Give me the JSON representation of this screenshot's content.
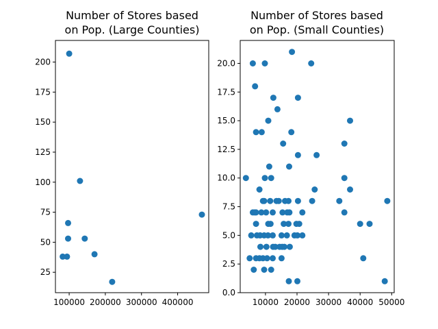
{
  "chart_data": [
    {
      "type": "scatter",
      "title": [
        "Number of Stores based",
        "on Pop. (Large Counties)"
      ],
      "xlabel": "",
      "ylabel": "",
      "xlim": [
        62000,
        486000
      ],
      "ylim": [
        8,
        218
      ],
      "x_ticks": [
        100000,
        200000,
        300000,
        400000
      ],
      "x_tick_labels": [
        "100000",
        "200000",
        "300000",
        "400000"
      ],
      "y_ticks": [
        25,
        50,
        75,
        100,
        125,
        150,
        175,
        200
      ],
      "y_tick_labels": [
        "25",
        "50",
        "75",
        "100",
        "125",
        "150",
        "175",
        "200"
      ],
      "marker_color": "#1f77b4",
      "grid": false,
      "points": [
        {
          "x": 100000,
          "y": 207
        },
        {
          "x": 130000,
          "y": 101
        },
        {
          "x": 97000,
          "y": 66
        },
        {
          "x": 97000,
          "y": 53
        },
        {
          "x": 143000,
          "y": 53
        },
        {
          "x": 82000,
          "y": 38
        },
        {
          "x": 94000,
          "y": 38
        },
        {
          "x": 170000,
          "y": 40
        },
        {
          "x": 219000,
          "y": 17
        },
        {
          "x": 467000,
          "y": 73
        }
      ]
    },
    {
      "type": "scatter",
      "title": [
        "Number of Stores based",
        "on Pop. (Small Counties)"
      ],
      "xlabel": "",
      "ylabel": "",
      "xlim": [
        2000,
        50800
      ],
      "ylim": [
        0,
        22
      ],
      "x_ticks": [
        10000,
        20000,
        30000,
        40000,
        50000
      ],
      "x_tick_labels": [
        "10000",
        "20000",
        "30000",
        "40000",
        "50000"
      ],
      "y_ticks": [
        0,
        2.5,
        5,
        7.5,
        10,
        12.5,
        15,
        17.5,
        20
      ],
      "y_tick_labels": [
        "0.0",
        "2.5",
        "5.0",
        "7.5",
        "10.0",
        "12.5",
        "15.0",
        "17.5",
        "20.0"
      ],
      "marker_color": "#1f77b4",
      "grid": false,
      "points": [
        {
          "x": 6000,
          "y": 20
        },
        {
          "x": 9800,
          "y": 20
        },
        {
          "x": 18400,
          "y": 21
        },
        {
          "x": 24500,
          "y": 20
        },
        {
          "x": 6700,
          "y": 18
        },
        {
          "x": 12500,
          "y": 17
        },
        {
          "x": 20300,
          "y": 17
        },
        {
          "x": 13800,
          "y": 16
        },
        {
          "x": 10900,
          "y": 15
        },
        {
          "x": 36800,
          "y": 15
        },
        {
          "x": 7000,
          "y": 14
        },
        {
          "x": 8800,
          "y": 14
        },
        {
          "x": 18200,
          "y": 14
        },
        {
          "x": 15600,
          "y": 13
        },
        {
          "x": 35000,
          "y": 13
        },
        {
          "x": 20300,
          "y": 12
        },
        {
          "x": 26200,
          "y": 12
        },
        {
          "x": 11200,
          "y": 11
        },
        {
          "x": 17500,
          "y": 11
        },
        {
          "x": 3800,
          "y": 10
        },
        {
          "x": 9800,
          "y": 10
        },
        {
          "x": 11800,
          "y": 10
        },
        {
          "x": 35000,
          "y": 10
        },
        {
          "x": 8100,
          "y": 9
        },
        {
          "x": 25600,
          "y": 9
        },
        {
          "x": 36800,
          "y": 9
        },
        {
          "x": 9200,
          "y": 8
        },
        {
          "x": 9600,
          "y": 8
        },
        {
          "x": 11500,
          "y": 8
        },
        {
          "x": 13500,
          "y": 8
        },
        {
          "x": 14200,
          "y": 8
        },
        {
          "x": 16200,
          "y": 8
        },
        {
          "x": 17300,
          "y": 8
        },
        {
          "x": 20300,
          "y": 8
        },
        {
          "x": 24800,
          "y": 8
        },
        {
          "x": 33400,
          "y": 8
        },
        {
          "x": 48600,
          "y": 8
        },
        {
          "x": 6000,
          "y": 7
        },
        {
          "x": 6600,
          "y": 7
        },
        {
          "x": 7000,
          "y": 7
        },
        {
          "x": 8700,
          "y": 7
        },
        {
          "x": 10200,
          "y": 7
        },
        {
          "x": 12300,
          "y": 7
        },
        {
          "x": 15400,
          "y": 7
        },
        {
          "x": 16900,
          "y": 7
        },
        {
          "x": 17600,
          "y": 7
        },
        {
          "x": 21700,
          "y": 7
        },
        {
          "x": 35000,
          "y": 7
        },
        {
          "x": 7000,
          "y": 6
        },
        {
          "x": 10900,
          "y": 6
        },
        {
          "x": 11600,
          "y": 6
        },
        {
          "x": 15800,
          "y": 6
        },
        {
          "x": 17300,
          "y": 6
        },
        {
          "x": 19800,
          "y": 6
        },
        {
          "x": 20700,
          "y": 6
        },
        {
          "x": 40000,
          "y": 6
        },
        {
          "x": 43000,
          "y": 6
        },
        {
          "x": 5500,
          "y": 5
        },
        {
          "x": 7300,
          "y": 5
        },
        {
          "x": 8300,
          "y": 5
        },
        {
          "x": 9600,
          "y": 5
        },
        {
          "x": 10800,
          "y": 5
        },
        {
          "x": 12300,
          "y": 5
        },
        {
          "x": 15100,
          "y": 5
        },
        {
          "x": 16800,
          "y": 5
        },
        {
          "x": 19200,
          "y": 5
        },
        {
          "x": 20100,
          "y": 5
        },
        {
          "x": 21700,
          "y": 5
        },
        {
          "x": 8400,
          "y": 4
        },
        {
          "x": 10300,
          "y": 4
        },
        {
          "x": 12400,
          "y": 4
        },
        {
          "x": 13100,
          "y": 4
        },
        {
          "x": 14500,
          "y": 4
        },
        {
          "x": 15300,
          "y": 4
        },
        {
          "x": 16000,
          "y": 4
        },
        {
          "x": 17700,
          "y": 4
        },
        {
          "x": 5000,
          "y": 3
        },
        {
          "x": 7000,
          "y": 3
        },
        {
          "x": 8100,
          "y": 3
        },
        {
          "x": 9200,
          "y": 3
        },
        {
          "x": 10500,
          "y": 3
        },
        {
          "x": 12300,
          "y": 3
        },
        {
          "x": 15100,
          "y": 3
        },
        {
          "x": 41000,
          "y": 3
        },
        {
          "x": 6300,
          "y": 2
        },
        {
          "x": 9600,
          "y": 2
        },
        {
          "x": 11800,
          "y": 2
        },
        {
          "x": 17400,
          "y": 1
        },
        {
          "x": 20100,
          "y": 1
        },
        {
          "x": 47800,
          "y": 1
        }
      ]
    }
  ]
}
